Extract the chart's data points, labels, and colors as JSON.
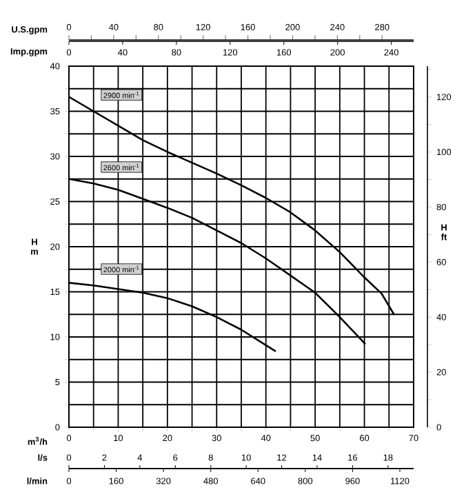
{
  "chart_data": {
    "type": "line",
    "xlabel": "m$^{3}$/h",
    "ylabel": "H m",
    "y2label": "H ft",
    "x2label": "U.S.gpm",
    "annotations": [
      "Imp.gpm",
      "0",
      "40",
      "80",
      "120",
      "160",
      "200",
      "240",
      "l/s",
      "0",
      "2",
      "4",
      "6",
      "8",
      "10",
      "12",
      "14",
      "16",
      "18",
      "l/min",
      "0",
      "160",
      "320",
      "480",
      "640",
      "800",
      "960",
      "1120"
    ],
    "xlim": [
      0,
      70
    ],
    "xticks": [
      0,
      {
        "value": 5,
        "label": null
      },
      10,
      {
        "value": 15,
        "label": null
      },
      20,
      {
        "value": 25,
        "label": null
      },
      30,
      {
        "value": 35,
        "label": null
      },
      40,
      {
        "value": 45,
        "label": null
      },
      50,
      {
        "value": 55,
        "label": null
      },
      60,
      {
        "value": 65,
        "label": null
      },
      70
    ],
    "ylim": [
      0,
      40
    ],
    "yticks": [
      0,
      {
        "value": 2.5,
        "label": null
      },
      5,
      {
        "value": 7.5,
        "label": null
      },
      10,
      {
        "value": 12.5,
        "label": null
      },
      15,
      {
        "value": 17.5,
        "label": null
      },
      20,
      {
        "value": 22.5,
        "label": null
      },
      25,
      {
        "value": 27.5,
        "label": null
      },
      30,
      {
        "value": 32.5,
        "label": null
      },
      35,
      {
        "value": 37.5,
        "label": null
      },
      40
    ],
    "y2lim": [
      0,
      131.2
    ],
    "y2ticks": [
      0,
      {
        "value": 10,
        "label": null
      },
      20,
      {
        "value": 30,
        "label": null
      },
      40,
      {
        "value": 50,
        "label": null
      },
      60,
      {
        "value": 70,
        "label": null
      },
      80,
      {
        "value": 90,
        "label": null
      },
      100,
      {
        "value": 110,
        "label": null
      },
      120,
      {
        "value": 130,
        "label": null
      }
    ],
    "x2lim": [
      0,
      308.2
    ],
    "x2ticks": [
      0,
      40,
      80,
      120,
      160,
      200,
      240,
      280
    ],
    "grid": true,
    "marker": "none",
    "line_style": "solid",
    "series": [
      {
        "name": "2900 min$^{-1}$",
        "color": "#000000",
        "x": [
          0,
          5,
          10,
          15,
          20,
          25,
          30,
          35,
          40,
          45,
          50,
          55,
          60,
          63.5,
          66
        ],
        "values": [
          36.6,
          35.0,
          33.4,
          31.8,
          30.5,
          29.3,
          28.1,
          26.8,
          25.4,
          23.8,
          21.8,
          19.4,
          16.6,
          14.8,
          12.5
        ]
      },
      {
        "name": "2600 min$^{-1}$",
        "color": "#000000",
        "x": [
          0,
          5,
          10,
          15,
          20,
          25,
          30,
          35,
          40,
          45,
          50,
          55,
          60.2
        ],
        "values": [
          27.5,
          27.0,
          26.3,
          25.3,
          24.3,
          23.2,
          21.8,
          20.4,
          18.7,
          16.8,
          14.9,
          12.2,
          9.2
        ]
      },
      {
        "name": "2000 min$^{-1}$",
        "color": "#000000",
        "x": [
          0,
          5,
          10,
          15,
          20,
          25,
          30,
          35,
          42
        ],
        "values": [
          16.0,
          15.7,
          15.3,
          14.9,
          14.3,
          13.4,
          12.2,
          10.8,
          8.4
        ]
      }
    ]
  }
}
